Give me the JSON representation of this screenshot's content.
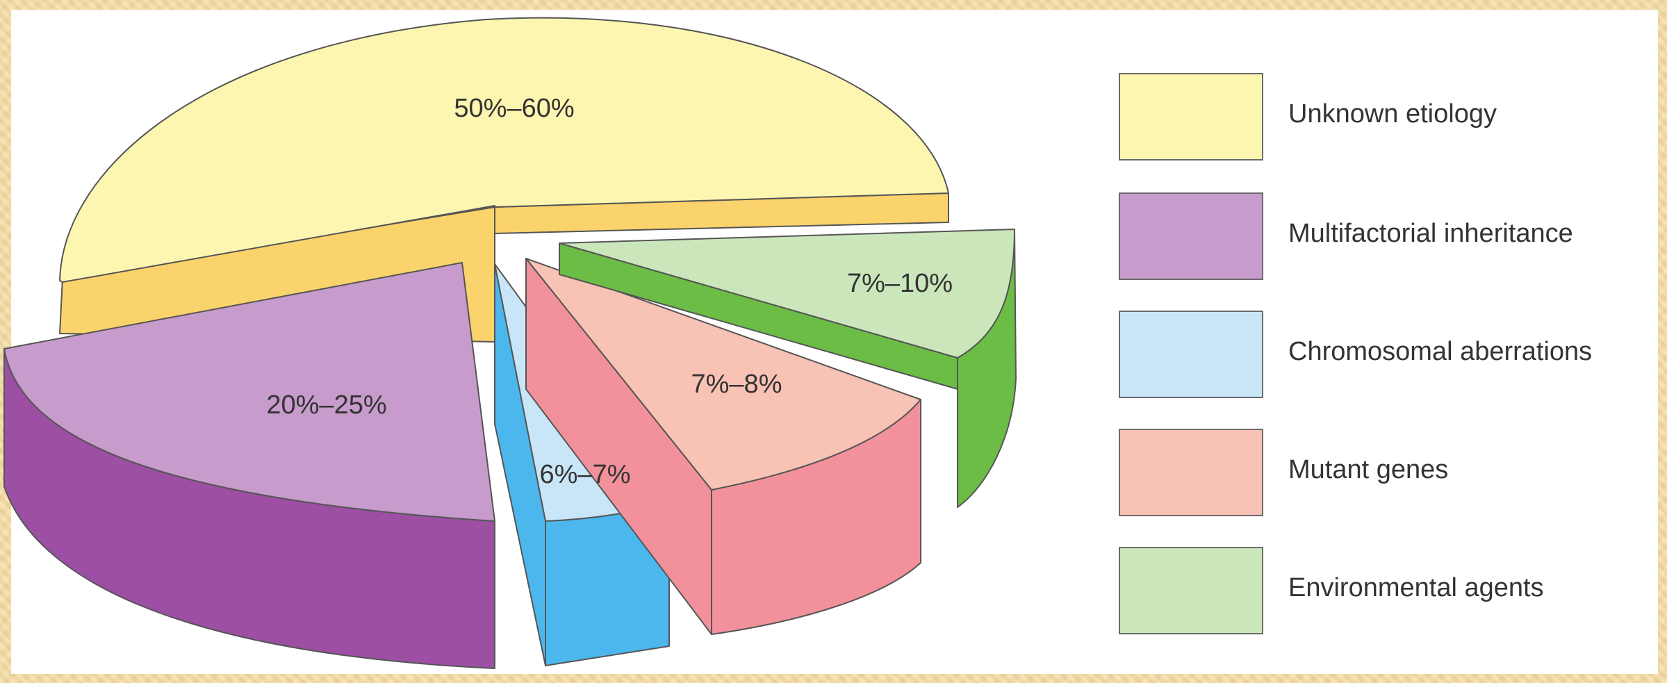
{
  "chart_data": {
    "type": "pie",
    "style": "3d-exploded",
    "slices": [
      {
        "name": "Unknown etiology",
        "label": "50%–60%",
        "range": [
          50,
          60
        ],
        "color": "#fdf6b0",
        "side_color": "#fbd36c"
      },
      {
        "name": "Multifactorial inheritance",
        "label": "20%–25%",
        "range": [
          20,
          25
        ],
        "color": "#c79bcb",
        "side_color": "#9c4fa3"
      },
      {
        "name": "Chromosomal aberrations",
        "label": "6%–7%",
        "range": [
          6,
          7
        ],
        "color": "#c9e6f8",
        "side_color": "#4bb7ec"
      },
      {
        "name": "Mutant genes",
        "label": "7%–8%",
        "range": [
          7,
          8
        ],
        "color": "#f8c2b5",
        "side_color": "#f2919b"
      },
      {
        "name": "Environmental agents",
        "label": "7%–10%",
        "range": [
          7,
          10
        ],
        "color": "#cce6bc",
        "side_color": "#6bbd45"
      }
    ]
  },
  "legend": {
    "placement": "right",
    "items": [
      {
        "label": "Unknown etiology",
        "color": "#fdf6b0"
      },
      {
        "label": "Multifactorial inheritance",
        "color": "#c79bcb"
      },
      {
        "label": "Chromosomal aberrations",
        "color": "#c9e6f8"
      },
      {
        "label": "Mutant genes",
        "color": "#f8c2b5"
      },
      {
        "label": "Environmental agents",
        "color": "#cce6bc"
      }
    ]
  }
}
